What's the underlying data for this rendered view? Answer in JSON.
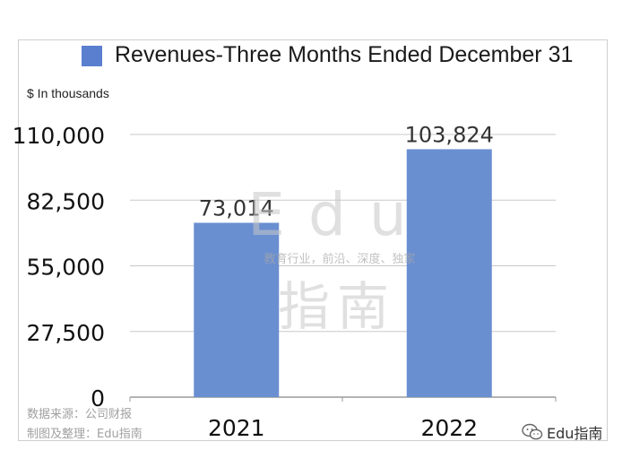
{
  "chart_data": {
    "type": "bar",
    "categories": [
      "2021",
      "2022"
    ],
    "values": [
      73014,
      103824
    ],
    "value_labels": [
      "73,014",
      "103,824"
    ],
    "series": [
      {
        "name": "Revenues-Three Months Ended December 31",
        "values": [
          73014,
          103824
        ]
      }
    ],
    "title": "",
    "ylabel": "$ In thousands",
    "xlabel": "",
    "ylim": [
      0,
      110000
    ],
    "yticks": [
      0,
      27500,
      55000,
      82500,
      110000
    ],
    "ytick_labels": [
      "0",
      "27,500",
      "55,000",
      "82,500",
      "110,000"
    ],
    "grid": true,
    "legend": "top",
    "bar_color": "#6a8fd1"
  },
  "watermark": {
    "latin": "Edu",
    "chinese": "指南",
    "tagline": "教育行业，前沿、深度、独家"
  },
  "source_note": {
    "line1": "数据来源：公司财报",
    "line2": "制图及整理：Edu指南"
  },
  "wechat": {
    "icon": "wechat-icon",
    "label": "Edu指南"
  }
}
